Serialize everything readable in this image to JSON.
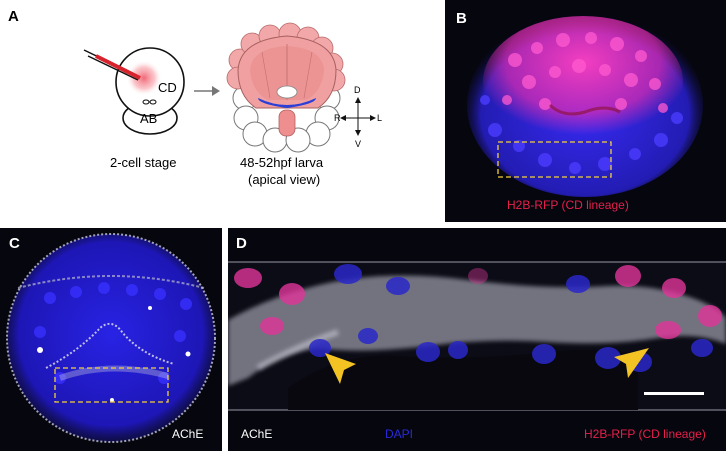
{
  "figure": {
    "panel_labels": {
      "A": "A",
      "B": "B",
      "C": "C",
      "D": "D"
    },
    "panel_a": {
      "cd_label": "CD",
      "ab_label": "AB",
      "stage_label": "2-cell stage",
      "larva_label_line1": "48-52hpf larva",
      "larva_label_line2": "(apical view)",
      "axis_d": "D",
      "axis_v": "V",
      "axis_r": "R",
      "axis_l": "L",
      "arrow_glyph": "→"
    },
    "panel_b": {
      "label": "H2B-RFP (CD lineage)",
      "label_color": "#e6204a"
    },
    "panel_c": {
      "label": "AChE",
      "label_color": "#ffffff"
    },
    "panel_d": {
      "label_ache": "AChE",
      "label_dapi": "DAPI",
      "label_rfp": "H2B-RFP (CD lineage)",
      "ache_color": "#ffffff",
      "dapi_color": "#2a2ad8",
      "rfp_color": "#e6204a"
    }
  }
}
